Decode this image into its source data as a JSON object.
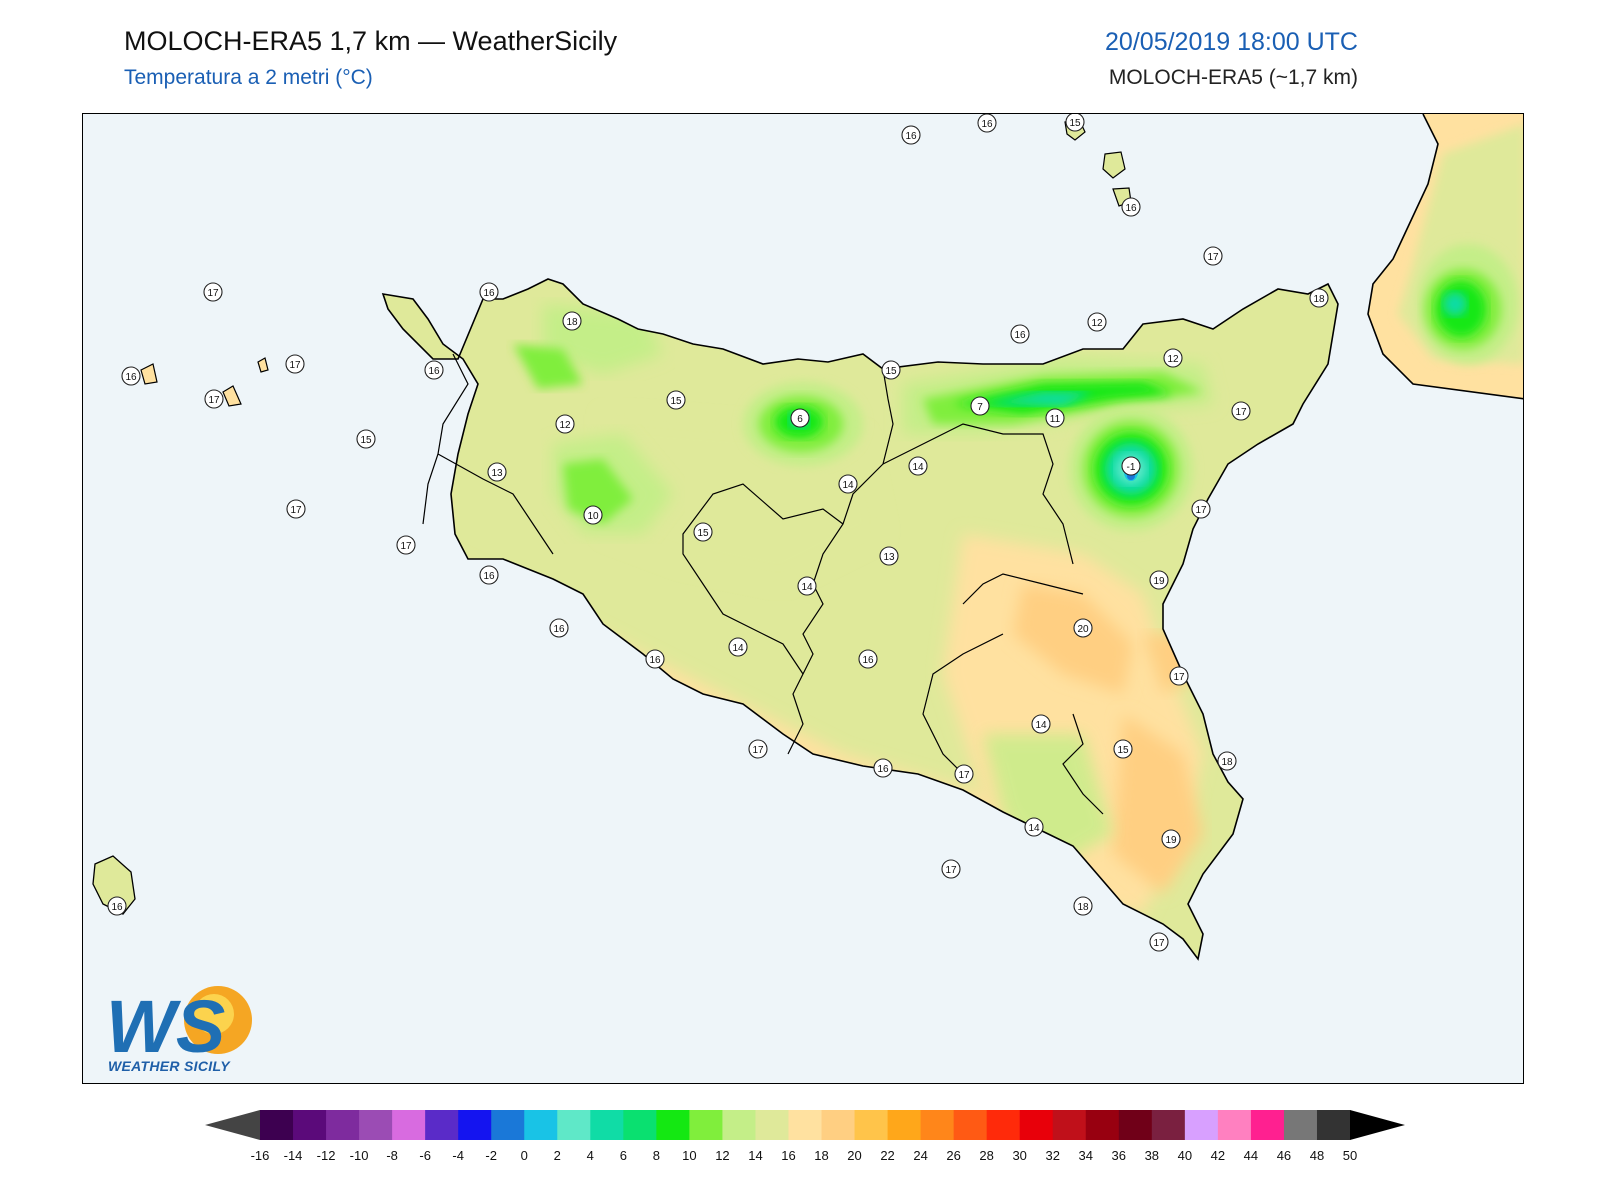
{
  "header": {
    "title": "MOLOCH-ERA5 1,7 km — WeatherSicily",
    "subtitle": "Temperatura a 2 metri (°C)",
    "datetime": "20/05/2019 18:00 UTC",
    "model": "MOLOCH-ERA5 (~1,7 km)"
  },
  "logo": {
    "monogram": "WS",
    "text": "WEATHER SICILY"
  },
  "colorbar": {
    "unit": "°C",
    "labels": [
      "-16",
      "-14",
      "-12",
      "-10",
      "-8",
      "-6",
      "-4",
      "-2",
      "0",
      "2",
      "4",
      "6",
      "8",
      "10",
      "12",
      "14",
      "16",
      "18",
      "20",
      "22",
      "24",
      "26",
      "28",
      "30",
      "32",
      "34",
      "36",
      "38",
      "40",
      "42",
      "44",
      "46",
      "48",
      "50"
    ],
    "colors": [
      "#3d0050",
      "#5b0a7a",
      "#7e2b9e",
      "#9b4cb4",
      "#d86be0",
      "#5a2bc8",
      "#1414f0",
      "#1a78d8",
      "#19c3e6",
      "#5fe8c8",
      "#10dca6",
      "#0ae070",
      "#14e812",
      "#80ee3c",
      "#c4ee88",
      "#dfe99a",
      "#ffe1a0",
      "#ffcf82",
      "#ffc44a",
      "#ffa71a",
      "#ff861a",
      "#ff5a14",
      "#ff2a0a",
      "#e8000a",
      "#c0101a",
      "#980010",
      "#700018",
      "#7a2040",
      "#d8a0ff",
      "#ff80c0",
      "#ff2090",
      "#777777",
      "#333333"
    ],
    "under_color": "#444444",
    "over_color": "#000000"
  },
  "map": {
    "sea_color": "#eef5f9",
    "station_values": [
      {
        "label": "16"
      },
      {
        "label": "16"
      },
      {
        "label": "15"
      },
      {
        "label": "16"
      },
      {
        "label": "17"
      },
      {
        "label": "18"
      },
      {
        "label": "17"
      },
      {
        "label": "16"
      },
      {
        "label": "18"
      },
      {
        "label": "16"
      },
      {
        "label": "12"
      },
      {
        "label": "12"
      },
      {
        "label": "16"
      },
      {
        "label": "17"
      },
      {
        "label": "17"
      },
      {
        "label": "16"
      },
      {
        "label": "15"
      },
      {
        "label": "15"
      },
      {
        "label": "12"
      },
      {
        "label": "6"
      },
      {
        "label": "7"
      },
      {
        "label": "11"
      },
      {
        "label": "-1"
      },
      {
        "label": "17"
      },
      {
        "label": "15"
      },
      {
        "label": "13"
      },
      {
        "label": "14"
      },
      {
        "label": "14"
      },
      {
        "label": "17"
      },
      {
        "label": "10"
      },
      {
        "label": "15"
      },
      {
        "label": "17"
      },
      {
        "label": "17"
      },
      {
        "label": "13"
      },
      {
        "label": "16"
      },
      {
        "label": "14"
      },
      {
        "label": "19"
      },
      {
        "label": "20"
      },
      {
        "label": "16"
      },
      {
        "label": "14"
      },
      {
        "label": "16"
      },
      {
        "label": "16"
      },
      {
        "label": "17"
      },
      {
        "label": "14"
      },
      {
        "label": "15"
      },
      {
        "label": "18"
      },
      {
        "label": "17"
      },
      {
        "label": "16"
      },
      {
        "label": "17"
      },
      {
        "label": "14"
      },
      {
        "label": "19"
      },
      {
        "label": "17"
      },
      {
        "label": "18"
      },
      {
        "label": "17"
      },
      {
        "label": "16"
      }
    ]
  }
}
